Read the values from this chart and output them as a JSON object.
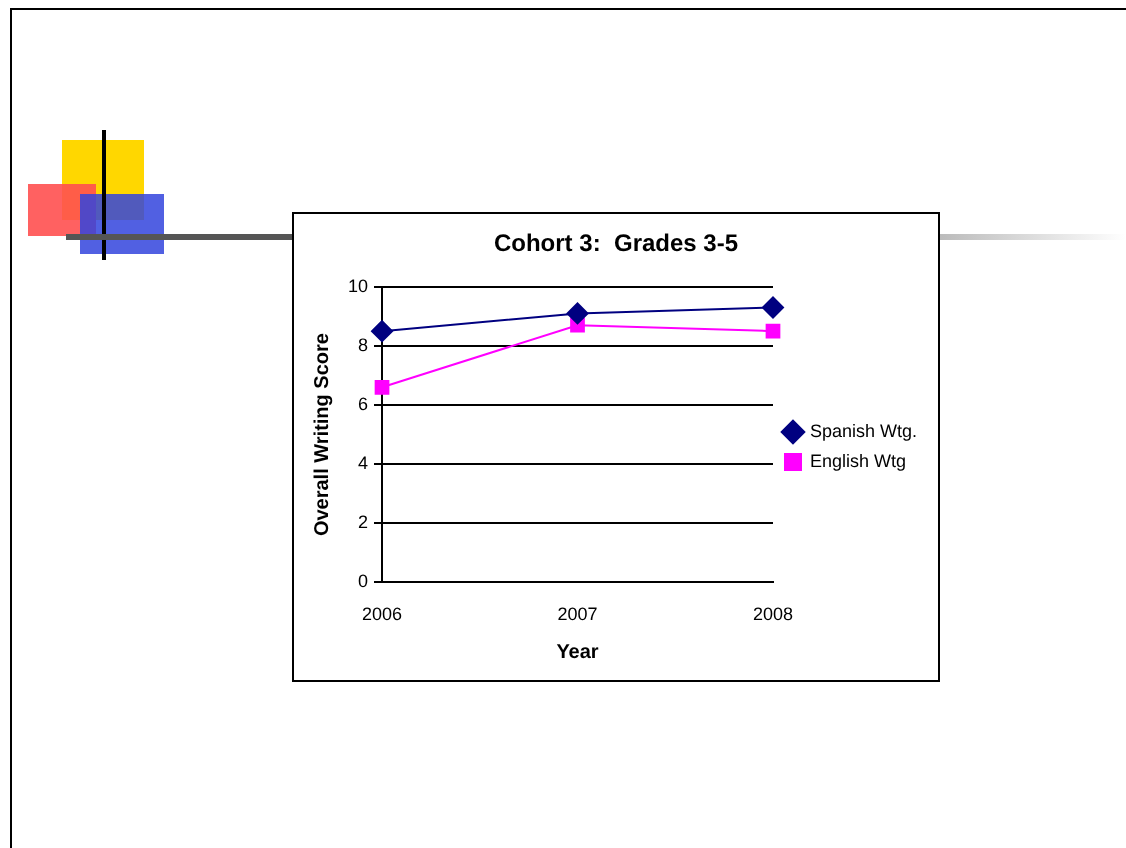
{
  "chart_data": {
    "type": "line",
    "title": "Cohort 3:  Grades 3-5",
    "xlabel": "Year",
    "ylabel": "Overall Writing Score",
    "categories": [
      "2006",
      "2007",
      "2008"
    ],
    "series": [
      {
        "name": "Spanish Wtg.",
        "color": "#000080",
        "marker": "diamond",
        "values": [
          8.5,
          9.1,
          9.3
        ]
      },
      {
        "name": "English Wtg",
        "color": "#ff00ff",
        "marker": "square",
        "values": [
          6.6,
          8.7,
          8.5
        ]
      }
    ],
    "ylim": [
      0,
      10
    ],
    "yticks": [
      0,
      2,
      4,
      6,
      8,
      10
    ],
    "grid": "y",
    "legend": "right",
    "line_style": "solid"
  }
}
